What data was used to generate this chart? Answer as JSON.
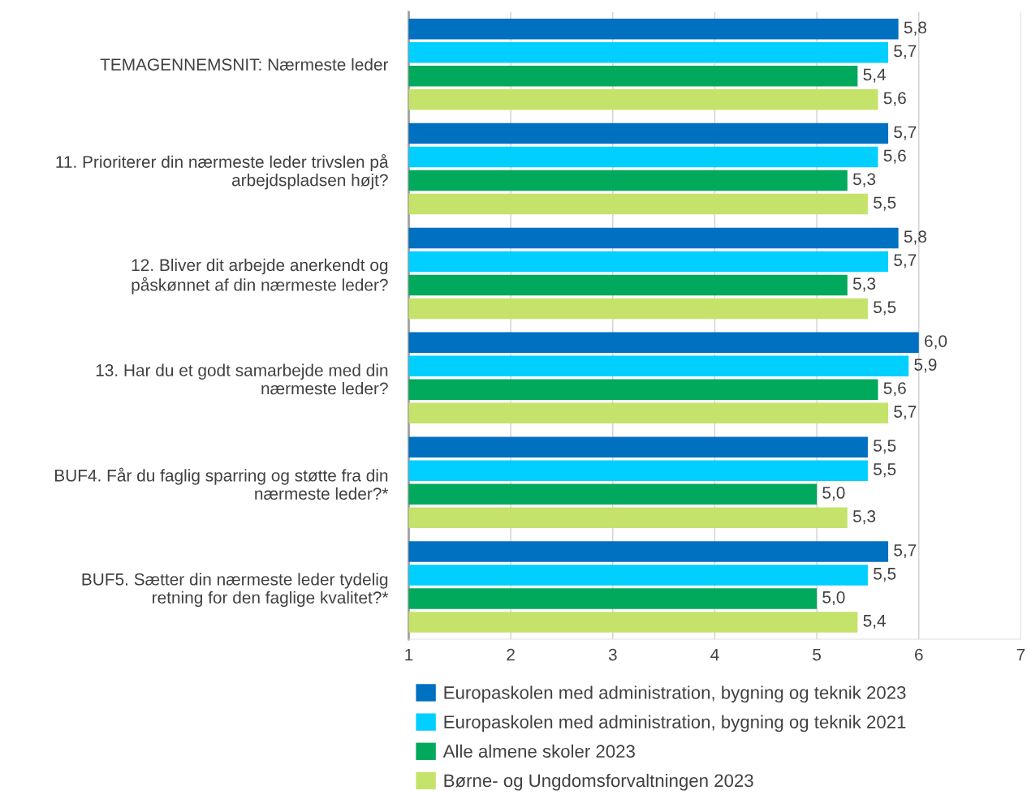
{
  "chart_data": {
    "type": "bar",
    "orientation": "horizontal",
    "categories": [
      "TEMAGENNEMSNIT: Nærmeste leder",
      "11. Prioriterer din nærmeste leder trivslen på\narbejdspladsen højt?",
      "12. Bliver dit arbejde anerkendt og\npåskønnet af din nærmeste leder?",
      "13. Har du et godt samarbejde med din\nnærmeste leder?",
      "BUF4. Får du faglig sparring og støtte fra din\nnærmeste leder?*",
      "BUF5. Sætter din nærmeste leder tydelig\nretning for den faglige kvalitet?*"
    ],
    "series": [
      {
        "name": "Europaskolen med administration, bygning og teknik 2023",
        "color": "#0070c0",
        "values": [
          5.8,
          5.7,
          5.8,
          6.0,
          5.5,
          5.7
        ],
        "value_labels": [
          "5,8",
          "5,7",
          "5,8",
          "6,0",
          "5,5",
          "5,7"
        ]
      },
      {
        "name": "Europaskolen med administration, bygning og teknik 2021",
        "color": "#00cfff",
        "values": [
          5.7,
          5.6,
          5.7,
          5.9,
          5.5,
          5.5
        ],
        "value_labels": [
          "5,7",
          "5,6",
          "5,7",
          "5,9",
          "5,5",
          "5,5"
        ]
      },
      {
        "name": "Alle almene skoler 2023",
        "color": "#00a95c",
        "values": [
          5.4,
          5.3,
          5.3,
          5.6,
          5.0,
          5.0
        ],
        "value_labels": [
          "5,4",
          "5,3",
          "5,3",
          "5,6",
          "5,0",
          "5,0"
        ]
      },
      {
        "name": "Børne- og Ungdomsforvaltningen 2023",
        "color": "#c5e36a",
        "values": [
          5.6,
          5.5,
          5.5,
          5.7,
          5.3,
          5.4
        ],
        "value_labels": [
          "5,6",
          "5,5",
          "5,5",
          "5,7",
          "5,3",
          "5,4"
        ]
      }
    ],
    "xlim": [
      1,
      7
    ],
    "xticks": [
      1,
      2,
      3,
      4,
      5,
      6,
      7
    ],
    "grid": "x",
    "legend": "bottom"
  }
}
